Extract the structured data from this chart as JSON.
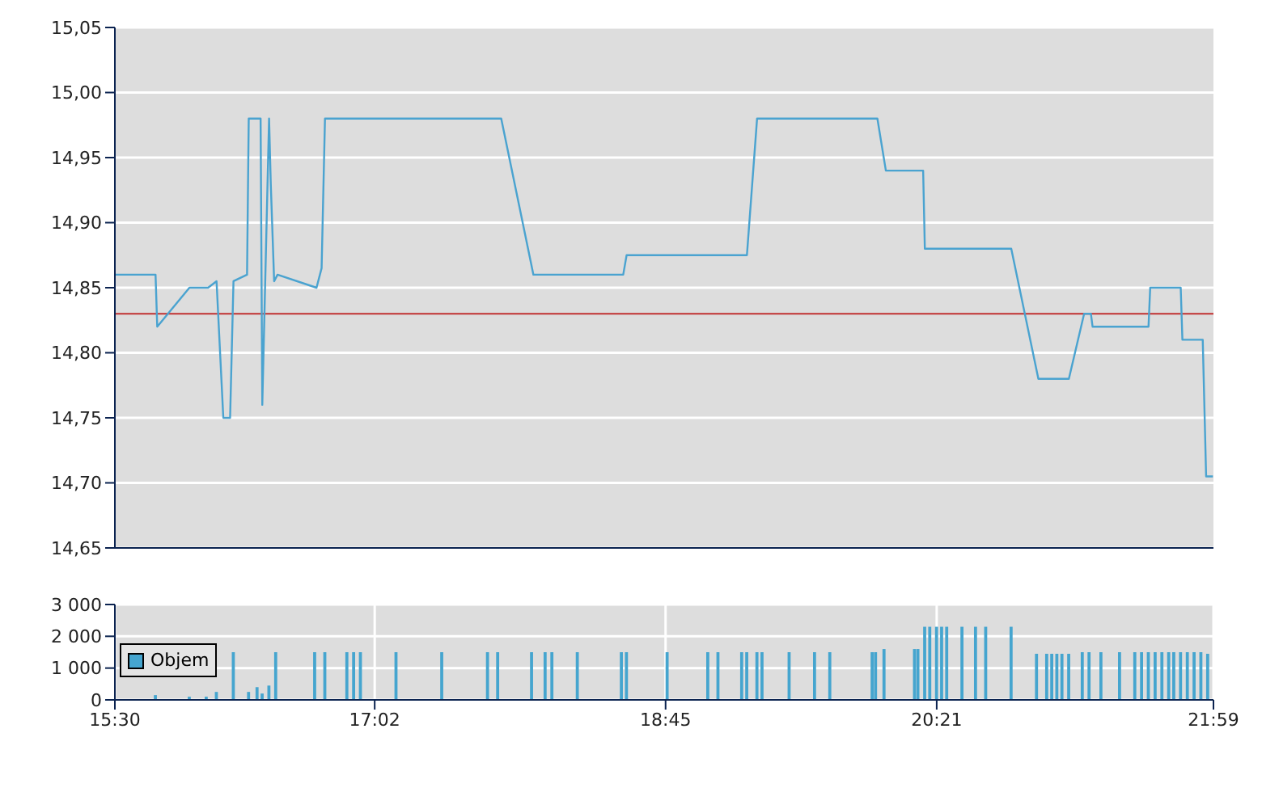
{
  "chart_data": [
    {
      "type": "line",
      "x": [
        15.5,
        15.74,
        15.75,
        15.94,
        16.05,
        16.1,
        16.14,
        16.18,
        16.2,
        16.28,
        16.29,
        16.35,
        16.36,
        16.37,
        16.41,
        16.42,
        16.44,
        16.46,
        16.69,
        16.72,
        16.74,
        17.78,
        17.97,
        18.5,
        18.52,
        19.23,
        19.29,
        20.0,
        20.05,
        20.27,
        20.28,
        20.79,
        20.95,
        21.13,
        21.22,
        21.26,
        21.27,
        21.6,
        21.61,
        21.79,
        21.8,
        21.92,
        21.94,
        21.98
      ],
      "series": [
        {
          "color": "#4aa3d0",
          "values": [
            14.86,
            14.86,
            14.82,
            14.85,
            14.85,
            14.855,
            14.75,
            14.75,
            14.855,
            14.86,
            14.98,
            14.98,
            14.98,
            14.76,
            14.98,
            14.93,
            14.855,
            14.86,
            14.85,
            14.865,
            14.98,
            14.98,
            14.86,
            14.86,
            14.875,
            14.875,
            14.98,
            14.98,
            14.94,
            14.94,
            14.88,
            14.88,
            14.78,
            14.78,
            14.83,
            14.83,
            14.82,
            14.82,
            14.85,
            14.85,
            14.81,
            14.81,
            14.705,
            14.705
          ]
        }
      ],
      "xlim": [
        15.5,
        21.9833
      ],
      "ylim": [
        14.65,
        15.05
      ],
      "yticks": [
        {
          "value": 14.65,
          "label": "14,65"
        },
        {
          "value": 14.7,
          "label": "14,70"
        },
        {
          "value": 14.75,
          "label": "14,75"
        },
        {
          "value": 14.8,
          "label": "14,80"
        },
        {
          "value": 14.85,
          "label": "14,85"
        },
        {
          "value": 14.9,
          "label": "14,90"
        },
        {
          "value": 14.95,
          "label": "14,95"
        },
        {
          "value": 15.0,
          "label": "15,00"
        },
        {
          "value": 15.05,
          "label": "15,05"
        }
      ],
      "ref_lines": [
        {
          "axis": "y",
          "value": 14.83,
          "color": "#c03030"
        }
      ],
      "grid": "y",
      "tick_labels": "y"
    },
    {
      "type": "bar",
      "x": [
        15.74,
        15.94,
        16.04,
        16.1,
        16.2,
        16.29,
        16.34,
        16.37,
        16.41,
        16.45,
        16.68,
        16.74,
        16.87,
        16.91,
        16.95,
        17.16,
        17.43,
        17.7,
        17.76,
        17.96,
        18.04,
        18.08,
        18.23,
        18.49,
        18.52,
        18.76,
        19.0,
        19.06,
        19.2,
        19.23,
        19.29,
        19.32,
        19.48,
        19.63,
        19.72,
        19.97,
        19.99,
        20.04,
        20.22,
        20.24,
        20.28,
        20.31,
        20.35,
        20.38,
        20.41,
        20.5,
        20.58,
        20.64,
        20.79,
        20.94,
        21.0,
        21.03,
        21.06,
        21.09,
        21.13,
        21.21,
        21.25,
        21.32,
        21.43,
        21.52,
        21.56,
        21.6,
        21.64,
        21.68,
        21.72,
        21.75,
        21.79,
        21.83,
        21.87,
        21.91,
        21.95
      ],
      "series": [
        {
          "name": "Objem",
          "color": "#45a5cf",
          "values": [
            150,
            100,
            100,
            250,
            1500,
            250,
            400,
            200,
            450,
            1500,
            1500,
            1500,
            1500,
            1500,
            1500,
            1500,
            1500,
            1500,
            1500,
            1500,
            1500,
            1500,
            1500,
            1500,
            1500,
            1500,
            1500,
            1500,
            1500,
            1500,
            1500,
            1500,
            1500,
            1500,
            1500,
            1500,
            1500,
            1600,
            1600,
            1600,
            2300,
            2300,
            2300,
            2300,
            2300,
            2300,
            2300,
            2300,
            2300,
            1450,
            1450,
            1450,
            1450,
            1450,
            1450,
            1500,
            1500,
            1500,
            1500,
            1500,
            1500,
            1500,
            1500,
            1500,
            1500,
            1500,
            1500,
            1500,
            1500,
            1500,
            1450
          ]
        }
      ],
      "xlim": [
        15.5,
        21.9833
      ],
      "xticks": [
        {
          "value": 15.5,
          "label": "15:30"
        },
        {
          "value": 17.0333,
          "label": "17:02"
        },
        {
          "value": 18.75,
          "label": "18:45"
        },
        {
          "value": 20.35,
          "label": "20:21"
        },
        {
          "value": 21.9833,
          "label": "21:59"
        }
      ],
      "ylim": [
        0,
        3000
      ],
      "yticks": [
        {
          "value": 0,
          "label": "0"
        },
        {
          "value": 1000,
          "label": "1 000"
        },
        {
          "value": 2000,
          "label": "2 000"
        },
        {
          "value": 3000,
          "label": "3 000"
        }
      ],
      "grid": true,
      "legend": "left"
    }
  ]
}
